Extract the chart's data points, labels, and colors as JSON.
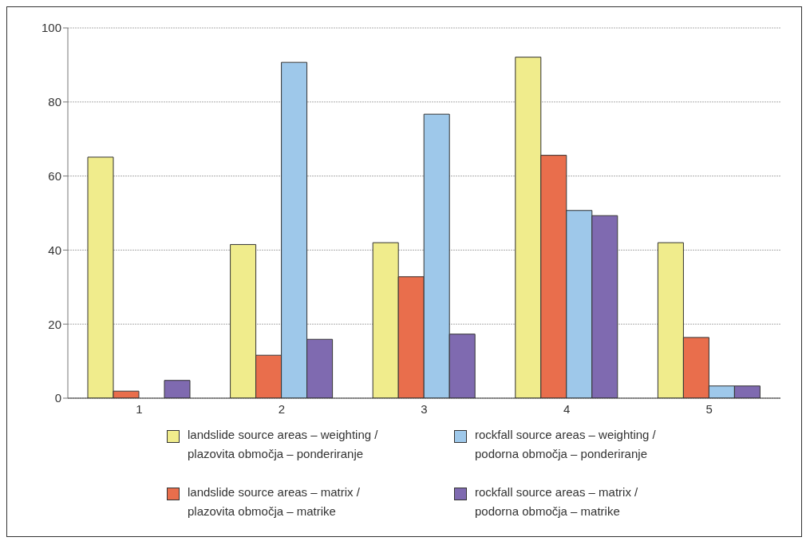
{
  "chart_data": {
    "type": "bar",
    "categories": [
      "1",
      "2",
      "3",
      "4",
      "5"
    ],
    "series": [
      {
        "name": "landslide source areas – weighting / plazovita območja – ponderiranje",
        "color": "#f0ec8c",
        "values": [
          65.1,
          41.5,
          42.0,
          92.1,
          42.0
        ]
      },
      {
        "name": "landslide source areas – matrix / plazovita območja – matrike",
        "color": "#e96e4c",
        "values": [
          1.9,
          11.6,
          32.8,
          65.6,
          16.4
        ]
      },
      {
        "name": "rockfall source areas – weighting / podorna območja – ponderiranje",
        "color": "#9ec8ea",
        "values": [
          0,
          90.7,
          76.7,
          50.7,
          3.3
        ]
      },
      {
        "name": "rockfall source areas – matrix / podorna območja – matrike",
        "color": "#7f6ab0",
        "values": [
          4.8,
          15.9,
          17.3,
          49.3,
          3.3
        ]
      }
    ],
    "ylim": [
      0,
      100
    ],
    "yticks": [
      0,
      20,
      40,
      60,
      80,
      100
    ],
    "grid": "y",
    "legend": "bottom"
  }
}
